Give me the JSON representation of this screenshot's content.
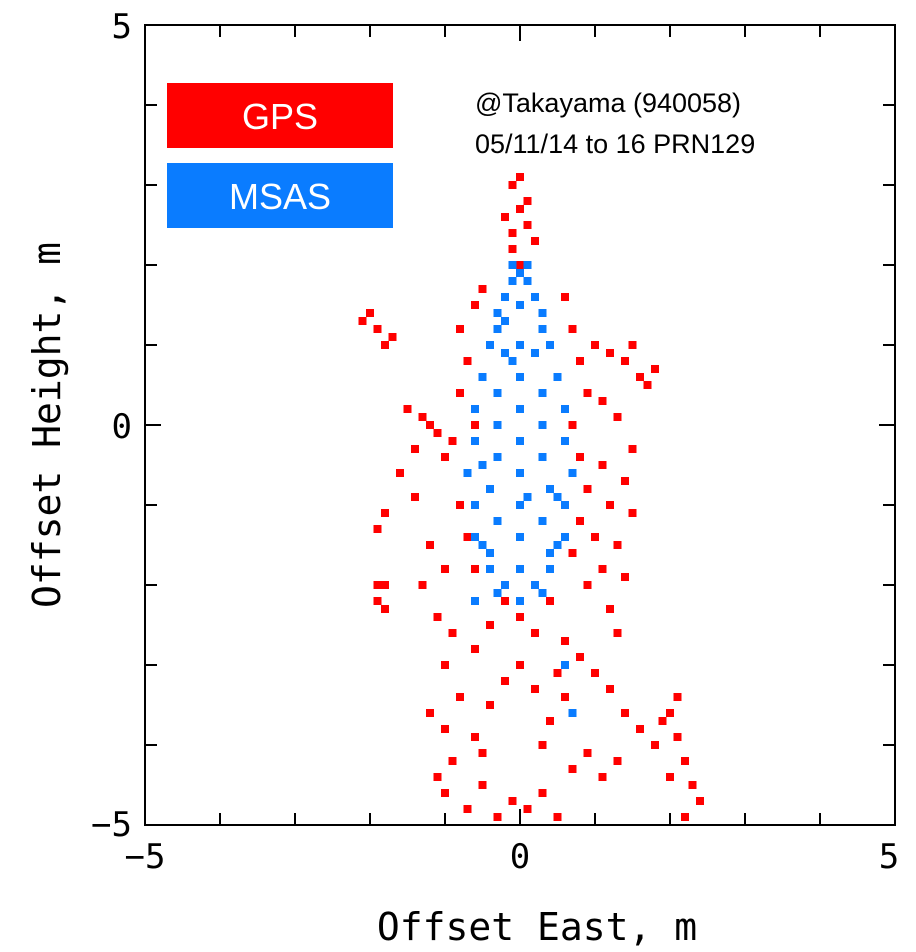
{
  "chart_data": {
    "type": "scatter",
    "title": "",
    "xlabel": "Offset East, m",
    "ylabel": "Offset Height, m",
    "xlim": [
      -5,
      5
    ],
    "ylim": [
      -5,
      5
    ],
    "x_ticks": [
      -5,
      0,
      5
    ],
    "y_ticks": [
      -5,
      0,
      5
    ],
    "x_tick_labels": [
      "−5",
      "0",
      "5"
    ],
    "y_tick_labels": [
      "−5",
      "0",
      "5"
    ],
    "grid": false,
    "legend_position": "top-left",
    "annotation": [
      "@Takayama (940058)",
      "05/11/14 to 16  PRN129"
    ],
    "series": [
      {
        "name": "GPS",
        "color": "#ff0000",
        "points": [
          [
            -2.0,
            1.4
          ],
          [
            -1.9,
            1.2
          ],
          [
            -1.8,
            1.0
          ],
          [
            -2.1,
            1.3
          ],
          [
            -1.7,
            1.1
          ],
          [
            -1.5,
            0.2
          ],
          [
            -1.3,
            0.1
          ],
          [
            -1.1,
            -0.1
          ],
          [
            -1.4,
            -0.3
          ],
          [
            -1.2,
            0.0
          ],
          [
            -1.0,
            -0.4
          ],
          [
            -0.9,
            -0.2
          ],
          [
            -1.6,
            -0.6
          ],
          [
            -1.4,
            -0.9
          ],
          [
            -1.8,
            -1.1
          ],
          [
            -1.9,
            -1.3
          ],
          [
            -1.2,
            -1.5
          ],
          [
            -1.0,
            -1.8
          ],
          [
            -1.3,
            -2.0
          ],
          [
            -1.1,
            -2.4
          ],
          [
            -1.8,
            -2.0
          ],
          [
            -1.9,
            -2.2
          ],
          [
            -0.9,
            -2.6
          ],
          [
            -1.0,
            -3.0
          ],
          [
            -0.8,
            -3.4
          ],
          [
            -1.0,
            -3.8
          ],
          [
            -0.9,
            -4.2
          ],
          [
            -1.0,
            -4.6
          ],
          [
            -1.1,
            -4.4
          ],
          [
            -1.2,
            -3.6
          ],
          [
            -0.7,
            -4.8
          ],
          [
            -0.5,
            -4.5
          ],
          [
            -0.3,
            -4.9
          ],
          [
            -0.1,
            -4.7
          ],
          [
            0.1,
            -4.8
          ],
          [
            0.3,
            -4.6
          ],
          [
            0.5,
            -4.9
          ],
          [
            -0.6,
            -3.9
          ],
          [
            -0.4,
            -3.5
          ],
          [
            -0.2,
            -3.2
          ],
          [
            0.0,
            -3.0
          ],
          [
            0.2,
            -3.3
          ],
          [
            0.4,
            -3.7
          ],
          [
            0.6,
            -3.4
          ],
          [
            -0.6,
            -2.8
          ],
          [
            -0.4,
            -2.5
          ],
          [
            -0.2,
            -2.2
          ],
          [
            0.0,
            -2.4
          ],
          [
            0.2,
            -2.6
          ],
          [
            0.4,
            -2.2
          ],
          [
            0.6,
            -2.7
          ],
          [
            0.8,
            -2.9
          ],
          [
            1.0,
            -3.1
          ],
          [
            1.2,
            -3.3
          ],
          [
            1.4,
            -3.6
          ],
          [
            1.6,
            -3.8
          ],
          [
            1.3,
            -4.2
          ],
          [
            1.1,
            -4.4
          ],
          [
            0.9,
            -4.1
          ],
          [
            0.7,
            -4.3
          ],
          [
            -0.8,
            0.4
          ],
          [
            -0.7,
            0.8
          ],
          [
            -0.8,
            1.2
          ],
          [
            -0.6,
            1.5
          ],
          [
            -0.5,
            1.7
          ],
          [
            -0.6,
            0.0
          ],
          [
            -0.7,
            -0.6
          ],
          [
            -0.8,
            -1.0
          ],
          [
            -0.7,
            -1.4
          ],
          [
            -0.6,
            -1.8
          ],
          [
            0.6,
            1.6
          ],
          [
            0.7,
            1.2
          ],
          [
            0.8,
            0.8
          ],
          [
            0.9,
            0.4
          ],
          [
            0.7,
            0.0
          ],
          [
            0.8,
            -0.4
          ],
          [
            0.9,
            -0.8
          ],
          [
            0.8,
            -1.2
          ],
          [
            0.7,
            -1.6
          ],
          [
            0.9,
            -2.0
          ],
          [
            1.0,
            1.0
          ],
          [
            1.2,
            0.9
          ],
          [
            1.4,
            0.8
          ],
          [
            1.5,
            1.0
          ],
          [
            1.6,
            0.6
          ],
          [
            1.8,
            0.7
          ],
          [
            1.7,
            0.5
          ],
          [
            1.1,
            0.3
          ],
          [
            1.3,
            0.1
          ],
          [
            1.5,
            -0.3
          ],
          [
            1.4,
            -0.7
          ],
          [
            1.5,
            -1.1
          ],
          [
            1.3,
            -1.5
          ],
          [
            1.4,
            -1.9
          ],
          [
            1.2,
            -2.3
          ],
          [
            1.1,
            -0.5
          ],
          [
            1.2,
            -1.0
          ],
          [
            1.0,
            -1.4
          ],
          [
            1.1,
            -1.8
          ],
          [
            1.3,
            -2.6
          ],
          [
            -0.1,
            2.4
          ],
          [
            0.0,
            2.7
          ],
          [
            -0.1,
            3.0
          ],
          [
            0.0,
            3.1
          ],
          [
            0.1,
            2.8
          ],
          [
            -0.1,
            2.2
          ],
          [
            0.1,
            2.5
          ],
          [
            -0.2,
            2.6
          ],
          [
            0.2,
            2.3
          ],
          [
            0.0,
            2.0
          ],
          [
            2.0,
            -3.6
          ],
          [
            2.1,
            -3.9
          ],
          [
            2.2,
            -4.2
          ],
          [
            2.3,
            -4.5
          ],
          [
            2.4,
            -4.7
          ],
          [
            2.2,
            -4.9
          ],
          [
            2.0,
            -4.4
          ],
          [
            1.8,
            -4.0
          ],
          [
            1.9,
            -3.7
          ],
          [
            2.1,
            -3.4
          ],
          [
            -1.9,
            -2.0
          ],
          [
            -1.8,
            -2.3
          ],
          [
            -0.5,
            -4.1
          ],
          [
            0.3,
            -4.0
          ],
          [
            0.5,
            -3.1
          ]
        ]
      },
      {
        "name": "MSAS",
        "color": "#0a7cff",
        "points": [
          [
            0.0,
            1.9
          ],
          [
            -0.1,
            1.8
          ],
          [
            0.1,
            1.8
          ],
          [
            -0.2,
            1.6
          ],
          [
            0.2,
            1.6
          ],
          [
            -0.3,
            1.4
          ],
          [
            0.3,
            1.4
          ],
          [
            0.0,
            1.5
          ],
          [
            -0.3,
            1.2
          ],
          [
            0.3,
            1.2
          ],
          [
            -0.4,
            1.0
          ],
          [
            0.4,
            1.0
          ],
          [
            0.0,
            1.0
          ],
          [
            -0.2,
            0.9
          ],
          [
            0.2,
            0.9
          ],
          [
            -0.5,
            0.6
          ],
          [
            0.5,
            0.6
          ],
          [
            0.0,
            0.6
          ],
          [
            -0.3,
            0.4
          ],
          [
            0.3,
            0.4
          ],
          [
            -0.6,
            0.2
          ],
          [
            0.6,
            0.2
          ],
          [
            0.0,
            0.2
          ],
          [
            -0.3,
            0.0
          ],
          [
            0.3,
            0.0
          ],
          [
            -0.6,
            -0.2
          ],
          [
            0.6,
            -0.2
          ],
          [
            0.0,
            -0.2
          ],
          [
            -0.3,
            -0.4
          ],
          [
            0.3,
            -0.4
          ],
          [
            -0.7,
            -0.6
          ],
          [
            0.7,
            -0.6
          ],
          [
            0.0,
            -0.6
          ],
          [
            -0.4,
            -0.8
          ],
          [
            0.4,
            -0.8
          ],
          [
            -0.6,
            -1.0
          ],
          [
            0.6,
            -1.0
          ],
          [
            0.0,
            -1.0
          ],
          [
            -0.3,
            -1.2
          ],
          [
            0.3,
            -1.2
          ],
          [
            -0.6,
            -1.4
          ],
          [
            0.6,
            -1.4
          ],
          [
            0.0,
            -1.4
          ],
          [
            -0.4,
            -1.6
          ],
          [
            0.4,
            -1.6
          ],
          [
            -0.4,
            -1.8
          ],
          [
            0.4,
            -1.8
          ],
          [
            0.0,
            -1.8
          ],
          [
            -0.2,
            -2.0
          ],
          [
            0.2,
            -2.0
          ],
          [
            -0.3,
            -2.1
          ],
          [
            0.3,
            -2.1
          ],
          [
            0.0,
            -2.2
          ],
          [
            -0.5,
            -1.5
          ],
          [
            0.5,
            -1.5
          ],
          [
            -0.1,
            0.8
          ],
          [
            0.1,
            -0.9
          ],
          [
            -0.5,
            -0.5
          ],
          [
            0.5,
            -0.9
          ],
          [
            -0.2,
            1.3
          ],
          [
            0.6,
            -3.0
          ],
          [
            0.7,
            -3.6
          ],
          [
            -0.1,
            2.0
          ],
          [
            0.1,
            2.0
          ],
          [
            -0.6,
            -2.2
          ]
        ]
      }
    ]
  },
  "legend": {
    "items": [
      {
        "label": "GPS",
        "color": "#ff0000"
      },
      {
        "label": "MSAS",
        "color": "#0a7cff"
      }
    ]
  }
}
